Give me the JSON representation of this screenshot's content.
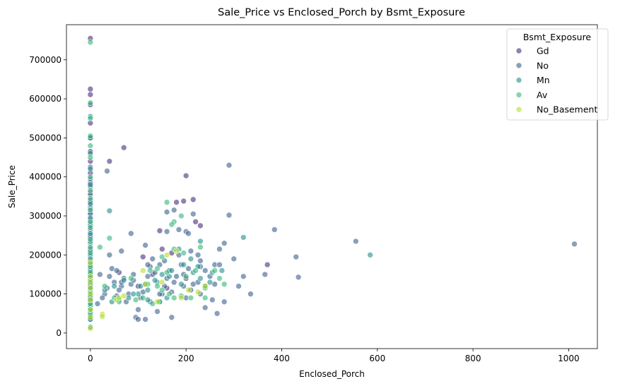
{
  "chart_data": {
    "type": "scatter",
    "title": "Sale_Price vs Enclosed_Porch by Bsmt_Exposure",
    "xlabel": "Enclosed_Porch",
    "ylabel": "Sale_Price",
    "xlim": [
      -50,
      1060
    ],
    "ylim": [
      -40000,
      790000
    ],
    "xticks": [
      0,
      200,
      400,
      600,
      800,
      1000
    ],
    "yticks": [
      0,
      100000,
      200000,
      300000,
      400000,
      500000,
      600000,
      700000
    ],
    "grid": false,
    "legend": {
      "title": "Bsmt_Exposure",
      "position": "top-right"
    },
    "series": [
      {
        "name": "Gd",
        "color": "#472d7b",
        "points": [
          [
            0,
            755000
          ],
          [
            0,
            625000
          ],
          [
            0,
            611000
          ],
          [
            0,
            585000
          ],
          [
            0,
            538000
          ],
          [
            0,
            500000
          ],
          [
            0,
            465000
          ],
          [
            0,
            440000
          ],
          [
            0,
            410000
          ],
          [
            0,
            385000
          ],
          [
            0,
            360000
          ],
          [
            0,
            340000
          ],
          [
            0,
            310000
          ],
          [
            0,
            290000
          ],
          [
            0,
            250000
          ],
          [
            0,
            215000
          ],
          [
            0,
            185000
          ],
          [
            0,
            150000
          ],
          [
            70,
            475000
          ],
          [
            40,
            440000
          ],
          [
            200,
            403000
          ],
          [
            180,
            335000
          ],
          [
            195,
            338000
          ],
          [
            215,
            342000
          ],
          [
            220,
            285000
          ],
          [
            230,
            275000
          ],
          [
            145,
            262000
          ],
          [
            150,
            215000
          ],
          [
            170,
            205000
          ],
          [
            110,
            195000
          ],
          [
            60,
            155000
          ],
          [
            130,
            150000
          ],
          [
            200,
            140000
          ],
          [
            370,
            175000
          ],
          [
            100,
            120000
          ],
          [
            160,
            115000
          ]
        ]
      },
      {
        "name": "No",
        "color": "#3b618c",
        "points": [
          [
            0,
            425000
          ],
          [
            0,
            395000
          ],
          [
            0,
            375000
          ],
          [
            0,
            355000
          ],
          [
            0,
            335000
          ],
          [
            0,
            320000
          ],
          [
            0,
            305000
          ],
          [
            0,
            280000
          ],
          [
            0,
            265000
          ],
          [
            0,
            245000
          ],
          [
            0,
            230000
          ],
          [
            0,
            210000
          ],
          [
            0,
            195000
          ],
          [
            0,
            180000
          ],
          [
            0,
            165000
          ],
          [
            0,
            150000
          ],
          [
            0,
            140000
          ],
          [
            0,
            130000
          ],
          [
            0,
            120000
          ],
          [
            0,
            110000
          ],
          [
            0,
            100000
          ],
          [
            0,
            90000
          ],
          [
            0,
            80000
          ],
          [
            0,
            65000
          ],
          [
            0,
            55000
          ],
          [
            0,
            40000
          ],
          [
            0,
            35000
          ],
          [
            35,
            415000
          ],
          [
            290,
            430000
          ],
          [
            385,
            265000
          ],
          [
            555,
            235000
          ],
          [
            1012,
            228000
          ],
          [
            430,
            195000
          ],
          [
            435,
            143000
          ],
          [
            365,
            150000
          ],
          [
            335,
            100000
          ],
          [
            320,
            145000
          ],
          [
            300,
            190000
          ],
          [
            290,
            302000
          ],
          [
            270,
            215000
          ],
          [
            280,
            230000
          ],
          [
            260,
            175000
          ],
          [
            265,
            50000
          ],
          [
            280,
            80000
          ],
          [
            240,
            65000
          ],
          [
            230,
            100000
          ],
          [
            310,
            120000
          ],
          [
            250,
            145000
          ],
          [
            240,
            160000
          ],
          [
            225,
            130000
          ],
          [
            210,
            110000
          ],
          [
            200,
            90000
          ],
          [
            195,
            150000
          ],
          [
            190,
            175000
          ],
          [
            185,
            200000
          ],
          [
            175,
            130000
          ],
          [
            170,
            105000
          ],
          [
            165,
            160000
          ],
          [
            160,
            140000
          ],
          [
            155,
            120000
          ],
          [
            150,
            100000
          ],
          [
            145,
            80000
          ],
          [
            140,
            55000
          ],
          [
            130,
            190000
          ],
          [
            125,
            170000
          ],
          [
            120,
            145000
          ],
          [
            115,
            125000
          ],
          [
            110,
            105000
          ],
          [
            105,
            90000
          ],
          [
            100,
            60000
          ],
          [
            95,
            40000
          ],
          [
            90,
            150000
          ],
          [
            85,
            125000
          ],
          [
            80,
            100000
          ],
          [
            75,
            80000
          ],
          [
            70,
            140000
          ],
          [
            65,
            120000
          ],
          [
            60,
            110000
          ],
          [
            55,
            95000
          ],
          [
            50,
            130000
          ],
          [
            45,
            165000
          ],
          [
            40,
            145000
          ],
          [
            35,
            115000
          ],
          [
            30,
            100000
          ],
          [
            25,
            90000
          ],
          [
            20,
            150000
          ],
          [
            15,
            75000
          ],
          [
            115,
            35000
          ],
          [
            100,
            35000
          ],
          [
            170,
            40000
          ],
          [
            85,
            255000
          ],
          [
            160,
            260000
          ],
          [
            175,
            315000
          ],
          [
            160,
            310000
          ],
          [
            230,
            185000
          ],
          [
            260,
            125000
          ],
          [
            215,
            305000
          ],
          [
            185,
            265000
          ],
          [
            115,
            225000
          ],
          [
            65,
            210000
          ],
          [
            145,
            175000
          ],
          [
            135,
            155000
          ],
          [
            205,
            165000
          ],
          [
            240,
            120000
          ],
          [
            270,
            175000
          ],
          [
            180,
            145000
          ],
          [
            120,
            175000
          ],
          [
            90,
            135000
          ],
          [
            55,
            160000
          ],
          [
            40,
            200000
          ],
          [
            210,
            210000
          ],
          [
            155,
            185000
          ],
          [
            200,
            260000
          ],
          [
            205,
            255000
          ],
          [
            255,
            85000
          ],
          [
            225,
            200000
          ],
          [
            195,
            120000
          ],
          [
            145,
            100000
          ],
          [
            65,
            130000
          ],
          [
            125,
            80000
          ],
          [
            215,
            125000
          ],
          [
            230,
            170000
          ]
        ]
      },
      {
        "name": "Mn",
        "color": "#21908d",
        "points": [
          [
            0,
            555000
          ],
          [
            0,
            500000
          ],
          [
            0,
            460000
          ],
          [
            0,
            420000
          ],
          [
            0,
            380000
          ],
          [
            0,
            330000
          ],
          [
            0,
            295000
          ],
          [
            0,
            275000
          ],
          [
            0,
            255000
          ],
          [
            0,
            235000
          ],
          [
            0,
            200000
          ],
          [
            0,
            175000
          ],
          [
            0,
            160000
          ],
          [
            0,
            145000
          ],
          [
            0,
            125000
          ],
          [
            0,
            115000
          ],
          [
            0,
            95000
          ],
          [
            0,
            85000
          ],
          [
            0,
            70000
          ],
          [
            0,
            50000
          ],
          [
            0,
            35000
          ],
          [
            0,
            15000
          ],
          [
            585,
            200000
          ],
          [
            320,
            245000
          ],
          [
            230,
            235000
          ],
          [
            40,
            313000
          ],
          [
            185,
            215000
          ],
          [
            210,
            190000
          ],
          [
            195,
            175000
          ],
          [
            170,
            160000
          ],
          [
            150,
            150000
          ],
          [
            140,
            130000
          ],
          [
            120,
            110000
          ],
          [
            100,
            100000
          ],
          [
            80,
            90000
          ],
          [
            60,
            85000
          ],
          [
            45,
            80000
          ],
          [
            230,
            140000
          ],
          [
            255,
            155000
          ],
          [
            275,
            160000
          ],
          [
            215,
            155000
          ],
          [
            165,
            145000
          ],
          [
            135,
            135000
          ],
          [
            105,
            120000
          ],
          [
            70,
            135000
          ],
          [
            50,
            120000
          ],
          [
            30,
            110000
          ],
          [
            190,
            125000
          ],
          [
            250,
            130000
          ],
          [
            160,
            90000
          ],
          [
            120,
            85000
          ],
          [
            90,
            100000
          ],
          [
            225,
            170000
          ]
        ]
      },
      {
        "name": "Av",
        "color": "#35b779",
        "points": [
          [
            0,
            745000
          ],
          [
            0,
            590000
          ],
          [
            0,
            550000
          ],
          [
            0,
            505000
          ],
          [
            0,
            480000
          ],
          [
            0,
            450000
          ],
          [
            0,
            400000
          ],
          [
            0,
            365000
          ],
          [
            0,
            345000
          ],
          [
            0,
            315000
          ],
          [
            0,
            285000
          ],
          [
            0,
            270000
          ],
          [
            0,
            240000
          ],
          [
            0,
            220000
          ],
          [
            0,
            205000
          ],
          [
            0,
            190000
          ],
          [
            0,
            170000
          ],
          [
            0,
            155000
          ],
          [
            0,
            135000
          ],
          [
            0,
            105000
          ],
          [
            0,
            75000
          ],
          [
            0,
            60000
          ],
          [
            0,
            45000
          ],
          [
            160,
            335000
          ],
          [
            175,
            285000
          ],
          [
            170,
            278000
          ],
          [
            190,
            300000
          ],
          [
            160,
            155000
          ],
          [
            165,
            100000
          ],
          [
            175,
            90000
          ],
          [
            150,
            110000
          ],
          [
            140,
            120000
          ],
          [
            175,
            215000
          ],
          [
            190,
            95000
          ],
          [
            210,
            90000
          ],
          [
            230,
            220000
          ],
          [
            240,
            115000
          ],
          [
            260,
            160000
          ],
          [
            270,
            140000
          ],
          [
            280,
            125000
          ],
          [
            130,
            75000
          ],
          [
            110,
            90000
          ],
          [
            60,
            80000
          ],
          [
            50,
            90000
          ],
          [
            30,
            120000
          ],
          [
            40,
            243000
          ],
          [
            20,
            220000
          ],
          [
            85,
            140000
          ],
          [
            125,
            160000
          ],
          [
            145,
            80000
          ],
          [
            200,
            145000
          ],
          [
            220,
            160000
          ],
          [
            240,
            90000
          ],
          [
            195,
            205000
          ],
          [
            150,
            195000
          ],
          [
            140,
            165000
          ],
          [
            120,
            125000
          ],
          [
            95,
            85000
          ]
        ]
      },
      {
        "name": "No_Basement",
        "color": "#b5de2b",
        "points": [
          [
            0,
            180000
          ],
          [
            0,
            145000
          ],
          [
            0,
            130000
          ],
          [
            0,
            115000
          ],
          [
            0,
            100000
          ],
          [
            0,
            85000
          ],
          [
            0,
            60000
          ],
          [
            0,
            40000
          ],
          [
            0,
            12000
          ],
          [
            25,
            48000
          ],
          [
            25,
            42000
          ],
          [
            55,
            85000
          ],
          [
            60,
            90000
          ],
          [
            70,
            95000
          ],
          [
            140,
            80000
          ],
          [
            190,
            90000
          ],
          [
            205,
            110000
          ],
          [
            225,
            105000
          ],
          [
            160,
            200000
          ],
          [
            180,
            210000
          ],
          [
            150,
            130000
          ],
          [
            110,
            160000
          ],
          [
            115,
            125000
          ],
          [
            240,
            120000
          ]
        ]
      }
    ]
  }
}
